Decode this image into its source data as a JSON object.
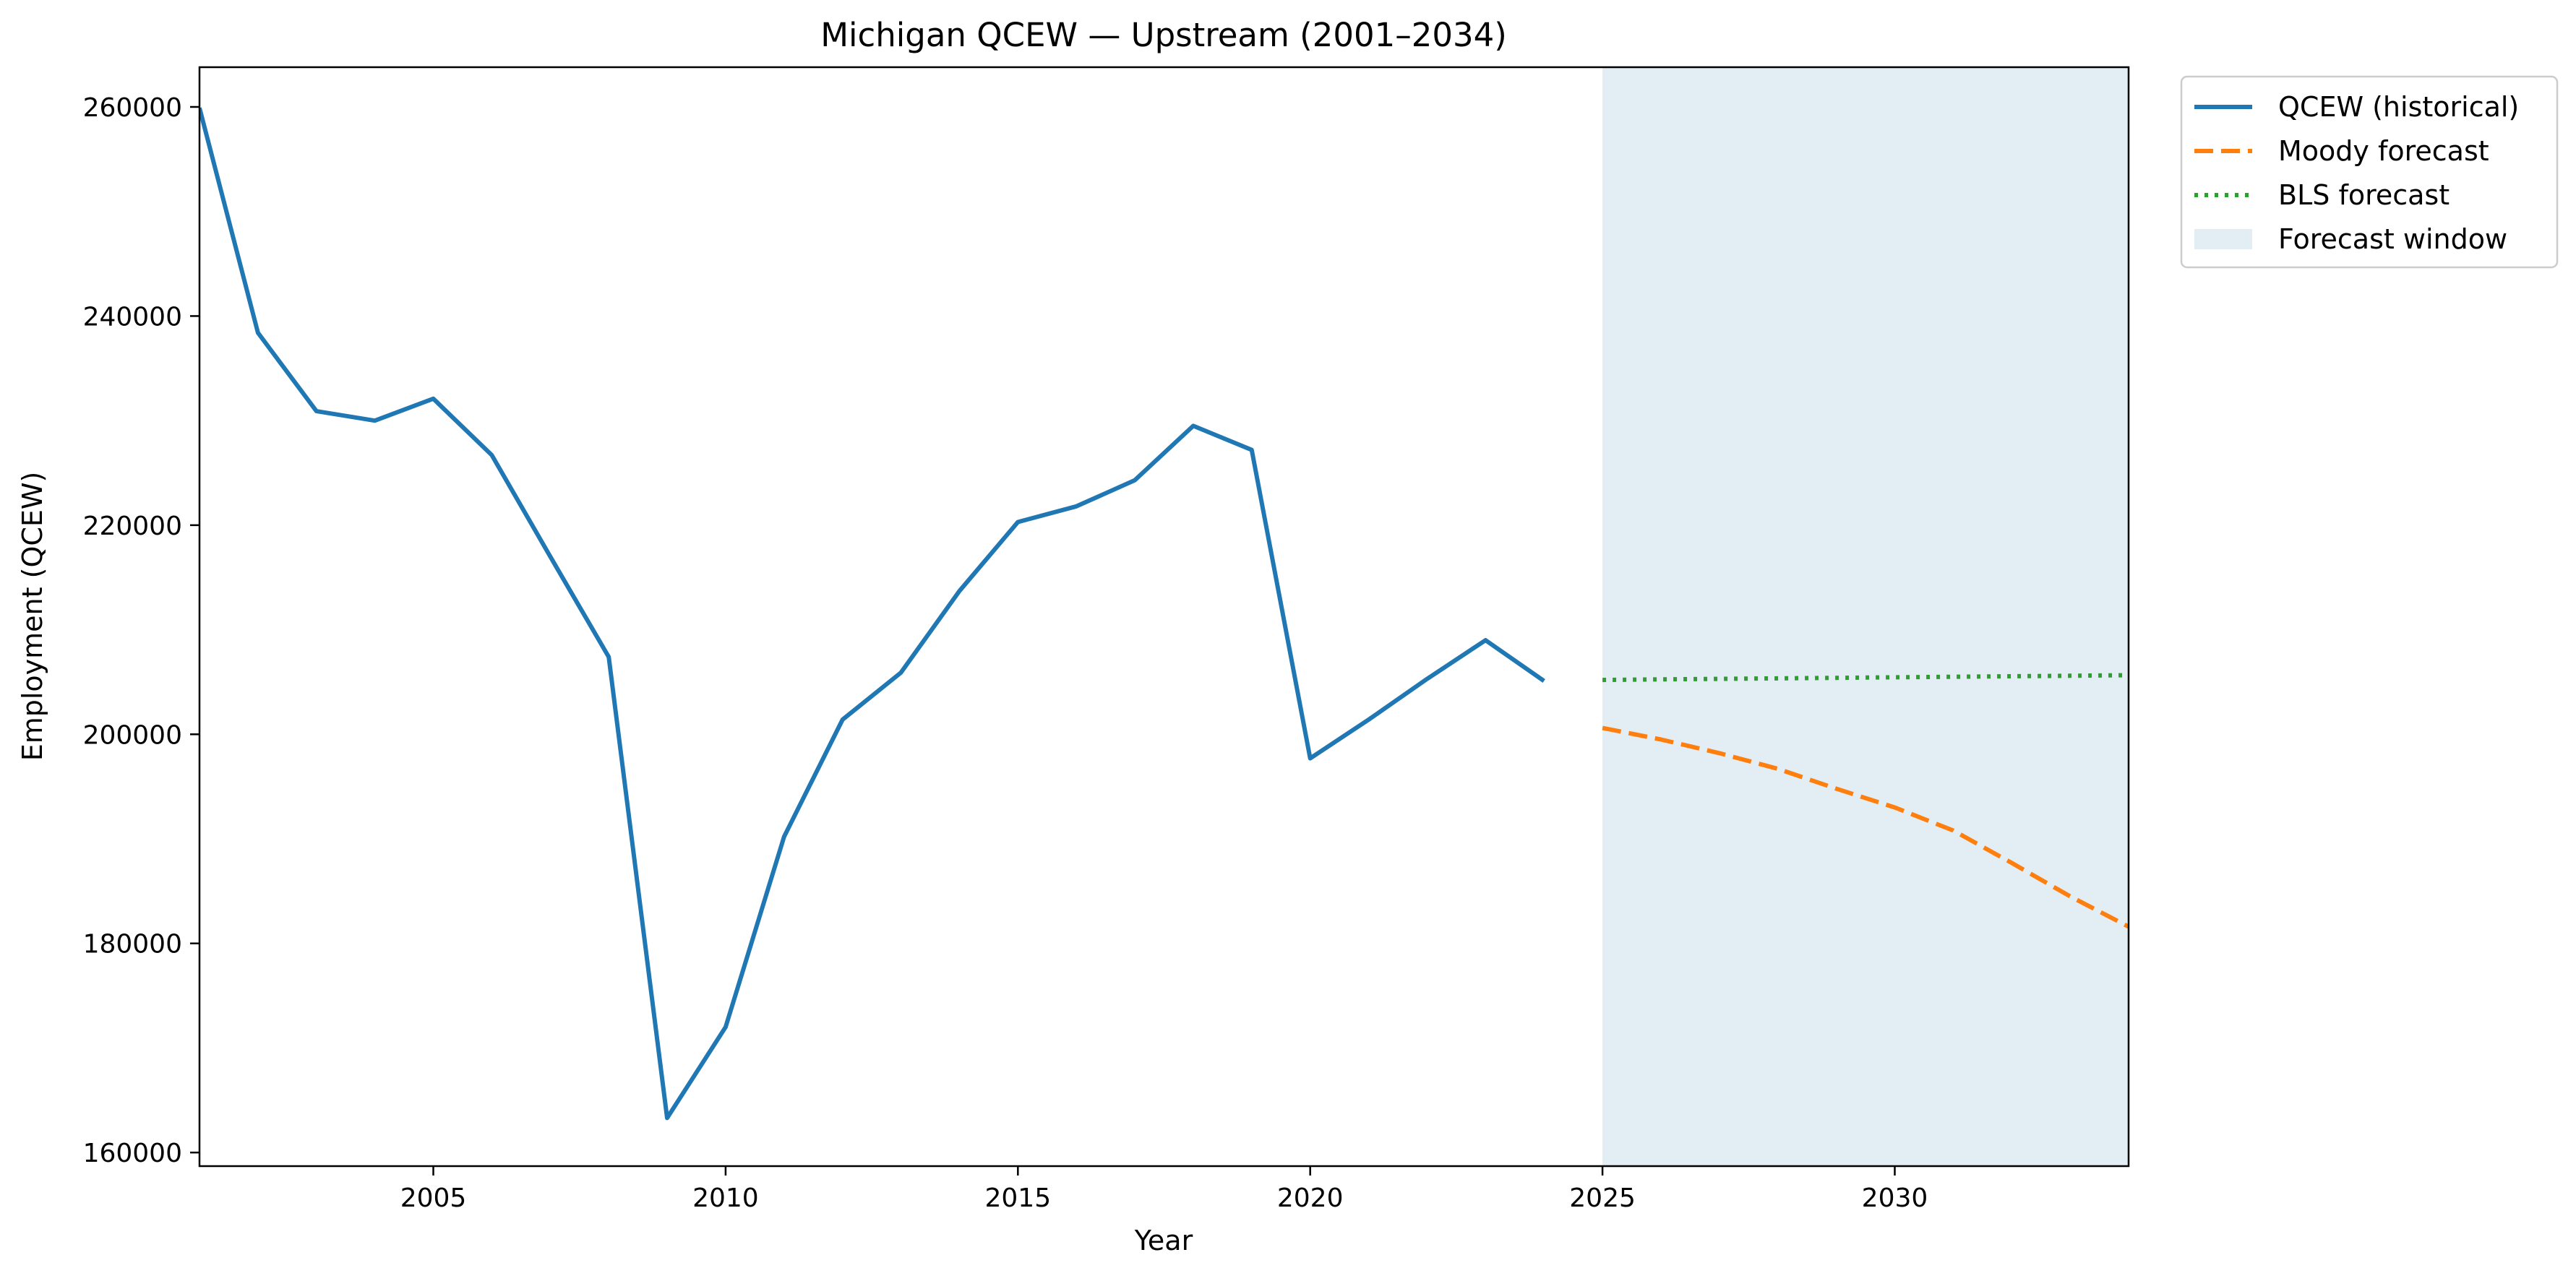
{
  "chart_data": {
    "type": "line",
    "title": "Michigan QCEW — Upstream (2001–2034)",
    "xlabel": "Year",
    "ylabel": "Employment (QCEW)",
    "xlim": [
      2001,
      2034
    ],
    "ylim": [
      158700,
      263800
    ],
    "x_ticks": [
      2005,
      2010,
      2015,
      2020,
      2025,
      2030
    ],
    "y_ticks": [
      160000,
      180000,
      200000,
      220000,
      240000,
      260000
    ],
    "grid": false,
    "legend_position": "outside top-right",
    "forecast_window": {
      "name": "Forecast window",
      "x_start": 2025,
      "x_end": 2034,
      "color": "#c8dcea"
    },
    "series": [
      {
        "name": "QCEW (historical)",
        "style": "solid",
        "color": "#1f77b4",
        "x": [
          2001,
          2002,
          2003,
          2004,
          2005,
          2006,
          2007,
          2008,
          2009,
          2010,
          2011,
          2012,
          2013,
          2014,
          2015,
          2016,
          2017,
          2018,
          2019,
          2020,
          2021,
          2022,
          2023,
          2024
        ],
        "y": [
          259900,
          238400,
          230900,
          230000,
          232100,
          226700,
          217000,
          207400,
          163300,
          172000,
          190200,
          201400,
          205900,
          213700,
          220300,
          221800,
          224300,
          229500,
          227200,
          197700,
          201400,
          205300,
          209000,
          205100
        ]
      },
      {
        "name": "Moody forecast",
        "style": "dashed",
        "color": "#ff7f0e",
        "x": [
          2025,
          2026,
          2027,
          2028,
          2029,
          2030,
          2031,
          2032,
          2033,
          2034
        ],
        "y": [
          200600,
          199500,
          198200,
          196700,
          194800,
          193000,
          190800,
          187700,
          184500,
          181600
        ]
      },
      {
        "name": "BLS forecast",
        "style": "dotted",
        "color": "#2ca02c",
        "x": [
          2025,
          2026,
          2027,
          2028,
          2029,
          2030,
          2031,
          2032,
          2033,
          2034
        ],
        "y": [
          205200,
          205250,
          205300,
          205350,
          205400,
          205450,
          205500,
          205550,
          205600,
          205650
        ]
      }
    ]
  }
}
